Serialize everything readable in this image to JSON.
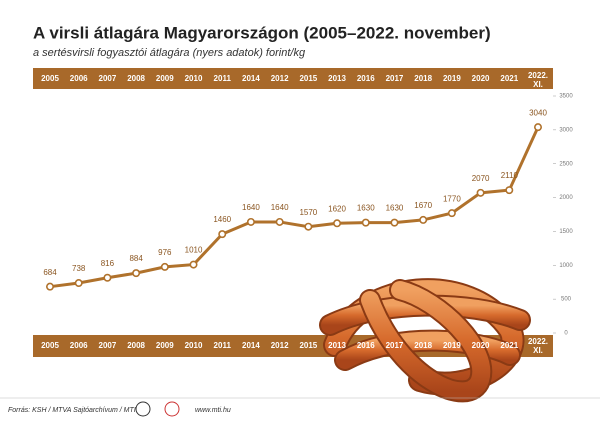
{
  "title": "A virsli átlagára Magyarországon (2005–2022. november)",
  "subtitle": "a sertésvirsli fogyasztói átlagára (nyers adatok) forint/kg",
  "chart_data": {
    "type": "line",
    "categories": [
      "2005",
      "2006",
      "2007",
      "2008",
      "2009",
      "2010",
      "2011",
      "2014",
      "2012",
      "2015",
      "2013",
      "2016",
      "2017",
      "2018",
      "2019",
      "2020",
      "2021",
      "2022.\nXI."
    ],
    "values": [
      684,
      738,
      816,
      884,
      976,
      1010,
      1460,
      1640,
      1640,
      1570,
      1620,
      1630,
      1630,
      1670,
      1770,
      2070,
      2110,
      3040
    ],
    "color": "#b0722c",
    "ylim": [
      0,
      3500
    ],
    "yticks": [
      0,
      500,
      1000,
      1500,
      2000,
      2500,
      3000,
      3500
    ]
  },
  "footer": {
    "source": "Forrás: KSH / MTVA Sajtóarchívum / MTI",
    "web": "www.mti.hu"
  }
}
